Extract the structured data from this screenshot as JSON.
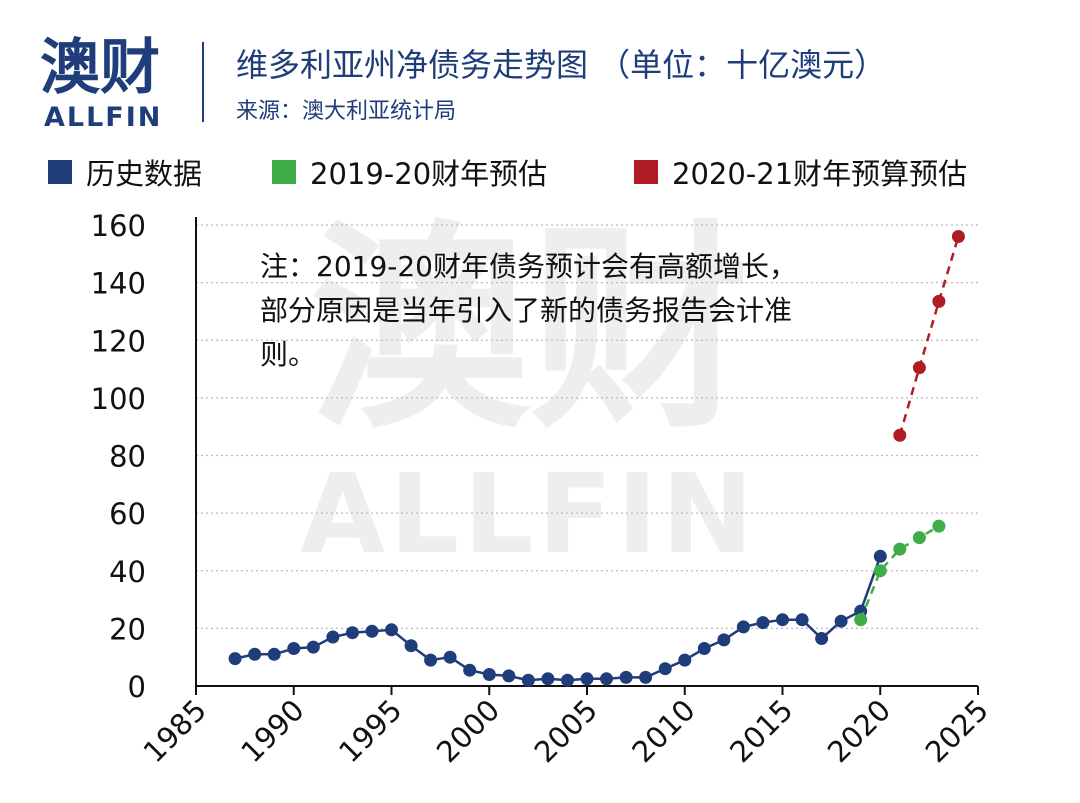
{
  "brand": {
    "name_cn": "澳财",
    "name_en": "ALLFIN",
    "color": "#1f3d7a"
  },
  "header": {
    "title": "维多利亚州净债务走势图 （单位：十亿澳元）",
    "subtitle": "来源：澳大利亚统计局"
  },
  "note": "注：2019-20财年债务预计会有高额增长，部分原因是当年引入了新的债务报告会计准则。",
  "chart_data": {
    "type": "line",
    "xlim": [
      1985,
      2025
    ],
    "ylim": [
      0,
      160
    ],
    "x_ticks": [
      "1985",
      "1990",
      "1995",
      "2000",
      "2005",
      "2010",
      "2015",
      "2020",
      "2025"
    ],
    "y_ticks": [
      "0",
      "20",
      "40",
      "60",
      "80",
      "100",
      "120",
      "140",
      "160"
    ],
    "grid": "horizontal dotted",
    "legend_position": "top",
    "series": [
      {
        "name": "历史数据",
        "color": "#1f3d7a",
        "style": "solid",
        "points": [
          [
            1987,
            9.5
          ],
          [
            1988,
            11
          ],
          [
            1989,
            11
          ],
          [
            1990,
            13
          ],
          [
            1991,
            13.5
          ],
          [
            1992,
            17
          ],
          [
            1993,
            18.5
          ],
          [
            1994,
            19
          ],
          [
            1995,
            19.5
          ],
          [
            1996,
            14
          ],
          [
            1997,
            9
          ],
          [
            1998,
            10
          ],
          [
            1999,
            5.5
          ],
          [
            2000,
            4
          ],
          [
            2001,
            3.5
          ],
          [
            2002,
            2
          ],
          [
            2003,
            2.5
          ],
          [
            2004,
            2
          ],
          [
            2005,
            2.5
          ],
          [
            2006,
            2.5
          ],
          [
            2007,
            3
          ],
          [
            2008,
            3
          ],
          [
            2009,
            6
          ],
          [
            2010,
            9
          ],
          [
            2011,
            13
          ],
          [
            2012,
            16
          ],
          [
            2013,
            20.5
          ],
          [
            2014,
            22
          ],
          [
            2015,
            23
          ],
          [
            2016,
            23
          ],
          [
            2017,
            16.5
          ],
          [
            2018,
            22.5
          ],
          [
            2019,
            26
          ],
          [
            2020,
            45
          ]
        ]
      },
      {
        "name": "2019-20财年预估",
        "color": "#3fae49",
        "style": "dashed",
        "points": [
          [
            2019,
            23
          ],
          [
            2020,
            40
          ],
          [
            2021,
            47.5
          ],
          [
            2022,
            51.5
          ],
          [
            2023,
            55.5
          ]
        ]
      },
      {
        "name": "2020-21财年预算预估",
        "color": "#b01c24",
        "style": "dashed",
        "points": [
          [
            2021,
            87
          ],
          [
            2022,
            110.5
          ],
          [
            2023,
            133.5
          ],
          [
            2024,
            156
          ]
        ]
      }
    ]
  }
}
